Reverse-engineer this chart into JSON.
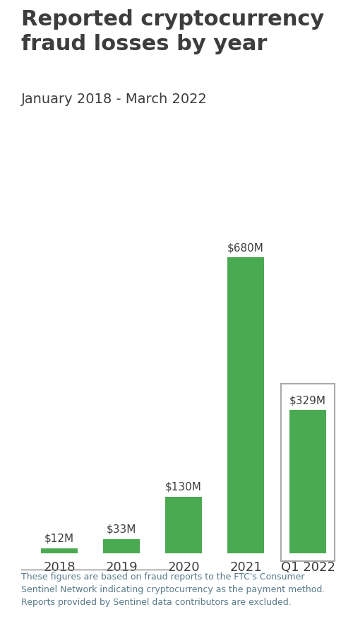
{
  "title": "Reported cryptocurrency\nfraud losses by year",
  "subtitle": "January 2018 - March 2022",
  "categories": [
    "2018",
    "2019",
    "2020",
    "2021",
    "Q1 2022"
  ],
  "values": [
    12,
    33,
    130,
    680,
    329
  ],
  "labels": [
    "$12M",
    "$33M",
    "$130M",
    "$680M",
    "$329M"
  ],
  "bar_color": "#4aaa52",
  "title_color": "#3d3d3d",
  "subtitle_color": "#3d3d3d",
  "label_color": "#3d3d3d",
  "tick_color": "#3d3d3d",
  "footnote": "These figures are based on fraud reports to the FTC's Consumer\nSentinel Network indicating cryptocurrency as the payment method.\nReports provided by Sentinel data contributors are excluded.",
  "footnote_color": "#5a7a8a",
  "background_color": "#ffffff",
  "ylim": [
    0,
    760
  ],
  "last_bar_box_color": "#aaaaaa",
  "title_fontsize": 22,
  "subtitle_fontsize": 14,
  "label_fontsize": 11,
  "tick_fontsize": 13,
  "footnote_fontsize": 9
}
